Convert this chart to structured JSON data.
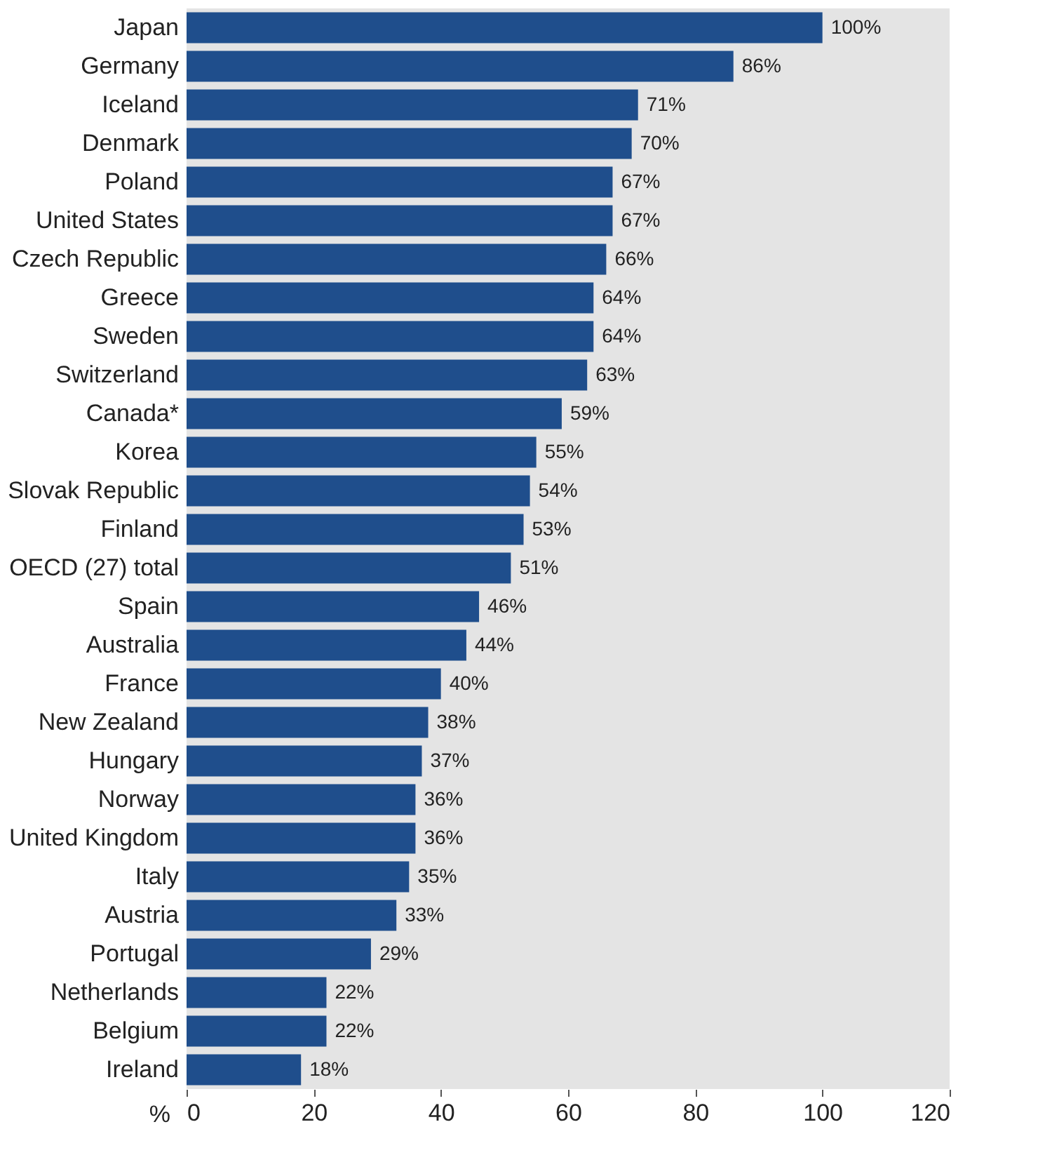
{
  "chart_data": {
    "type": "bar",
    "orientation": "horizontal",
    "xlabel": "%",
    "categories": [
      "Japan",
      "Germany",
      "Iceland",
      "Denmark",
      "Poland",
      "United States",
      "Czech Republic",
      "Greece",
      "Sweden",
      "Switzerland",
      "Canada*",
      "Korea",
      "Slovak Republic",
      "Finland",
      "OECD (27) total",
      "Spain",
      "Australia",
      "France",
      "New Zealand",
      "Hungary",
      "Norway",
      "United Kingdom",
      "Italy",
      "Austria",
      "Portugal",
      "Netherlands",
      "Belgium",
      "Ireland"
    ],
    "values": [
      100,
      86,
      71,
      70,
      67,
      67,
      66,
      64,
      64,
      63,
      59,
      55,
      54,
      53,
      51,
      46,
      44,
      40,
      38,
      37,
      36,
      36,
      35,
      33,
      29,
      22,
      22,
      18
    ],
    "value_labels": [
      "100%",
      "86%",
      "71%",
      "70%",
      "67%",
      "67%",
      "66%",
      "64%",
      "64%",
      "63%",
      "59%",
      "55%",
      "54%",
      "53%",
      "51%",
      "46%",
      "44%",
      "40%",
      "38%",
      "37%",
      "36%",
      "36%",
      "35%",
      "33%",
      "29%",
      "22%",
      "22%",
      "18%"
    ],
    "color": "#1f4e8c",
    "xlim": [
      0,
      120
    ],
    "xticks": [
      0,
      20,
      40,
      60,
      80,
      100,
      120
    ],
    "grid": false
  }
}
